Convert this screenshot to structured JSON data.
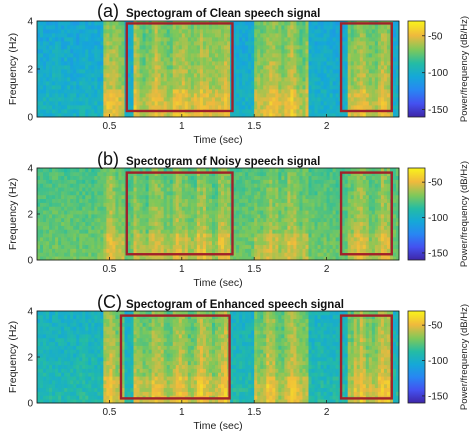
{
  "figure": {
    "time_axis_label": "Time (sec)",
    "frequency_axis_label": "Frequency (Hz)",
    "colorbar_label": "Power/frequency (dB/Hz)",
    "colors": {
      "frame": "#111111",
      "highlight_box": "#a0212a"
    }
  },
  "chart_data": [
    {
      "type": "heatmap",
      "panel_tag": "(a)",
      "title": "Spectogram of Clean speech signal",
      "xlabel": "Time (sec)",
      "ylabel": "Frequency (Hz)",
      "xlim": [
        0,
        2.5
      ],
      "ylim": [
        0,
        4
      ],
      "xticks": [
        0.5,
        1,
        1.5,
        2
      ],
      "yticks": [
        0,
        2,
        4
      ],
      "colorbar": {
        "label": "Power/frequency (dB/Hz)",
        "range": [
          -160,
          -30
        ],
        "ticks": [
          -50,
          -100,
          -150
        ],
        "colormap": "parula"
      },
      "highlight_boxes": [
        {
          "x_range": [
            0.62,
            1.35
          ],
          "y_range": [
            0.25,
            3.9
          ]
        },
        {
          "x_range": [
            2.1,
            2.45
          ],
          "y_range": [
            0.25,
            3.9
          ]
        }
      ],
      "characteristics": {
        "background_db": -105,
        "speech_segments_sec": [
          [
            0.45,
            0.6
          ],
          [
            0.66,
            1.34
          ],
          [
            1.5,
            1.88
          ],
          [
            2.15,
            2.45
          ]
        ],
        "speech_level_db": -58,
        "noise_floor_variation_db": 8
      }
    },
    {
      "type": "heatmap",
      "panel_tag": "(b)",
      "title": "Spectogram of Noisy speech signal",
      "xlabel": "Time (sec)",
      "ylabel": "Frequency (Hz)",
      "xlim": [
        0,
        2.5
      ],
      "ylim": [
        0,
        4
      ],
      "xticks": [
        0.5,
        1,
        1.5,
        2
      ],
      "yticks": [
        0,
        2,
        4
      ],
      "colorbar": {
        "label": "Power/frequency (dB/Hz)",
        "range": [
          -160,
          -30
        ],
        "ticks": [
          -50,
          -100,
          -150
        ],
        "colormap": "parula"
      },
      "highlight_boxes": [
        {
          "x_range": [
            0.62,
            1.35
          ],
          "y_range": [
            0.25,
            3.8
          ]
        },
        {
          "x_range": [
            2.1,
            2.45
          ],
          "y_range": [
            0.25,
            3.8
          ]
        }
      ],
      "characteristics": {
        "background_db": -80,
        "speech_segments_sec": [
          [
            0.45,
            0.6
          ],
          [
            0.66,
            1.34
          ],
          [
            1.5,
            1.88
          ],
          [
            2.15,
            2.45
          ]
        ],
        "speech_level_db": -62,
        "noise_floor_variation_db": 6
      }
    },
    {
      "type": "heatmap",
      "panel_tag": "(C)",
      "title": "Spectogram of Enhanced speech signal",
      "xlabel": "Time (sec)",
      "ylabel": "Frequency (Hz)",
      "xlim": [
        0,
        2.5
      ],
      "ylim": [
        0,
        4
      ],
      "xticks": [
        0.5,
        1,
        1.5,
        2
      ],
      "yticks": [
        0,
        2,
        4
      ],
      "colorbar": {
        "label": "Power/frequency (dB/Hz)",
        "range": [
          -160,
          -30
        ],
        "ticks": [
          -50,
          -100,
          -150
        ],
        "colormap": "parula"
      },
      "highlight_boxes": [
        {
          "x_range": [
            0.58,
            1.33
          ],
          "y_range": [
            0.2,
            3.8
          ]
        },
        {
          "x_range": [
            2.1,
            2.45
          ],
          "y_range": [
            0.2,
            3.8
          ]
        }
      ],
      "characteristics": {
        "background_db": -98,
        "speech_segments_sec": [
          [
            0.45,
            0.6
          ],
          [
            0.66,
            1.34
          ],
          [
            1.5,
            1.88
          ],
          [
            2.15,
            2.45
          ]
        ],
        "speech_level_db": -58,
        "noise_floor_variation_db": 8
      }
    }
  ]
}
